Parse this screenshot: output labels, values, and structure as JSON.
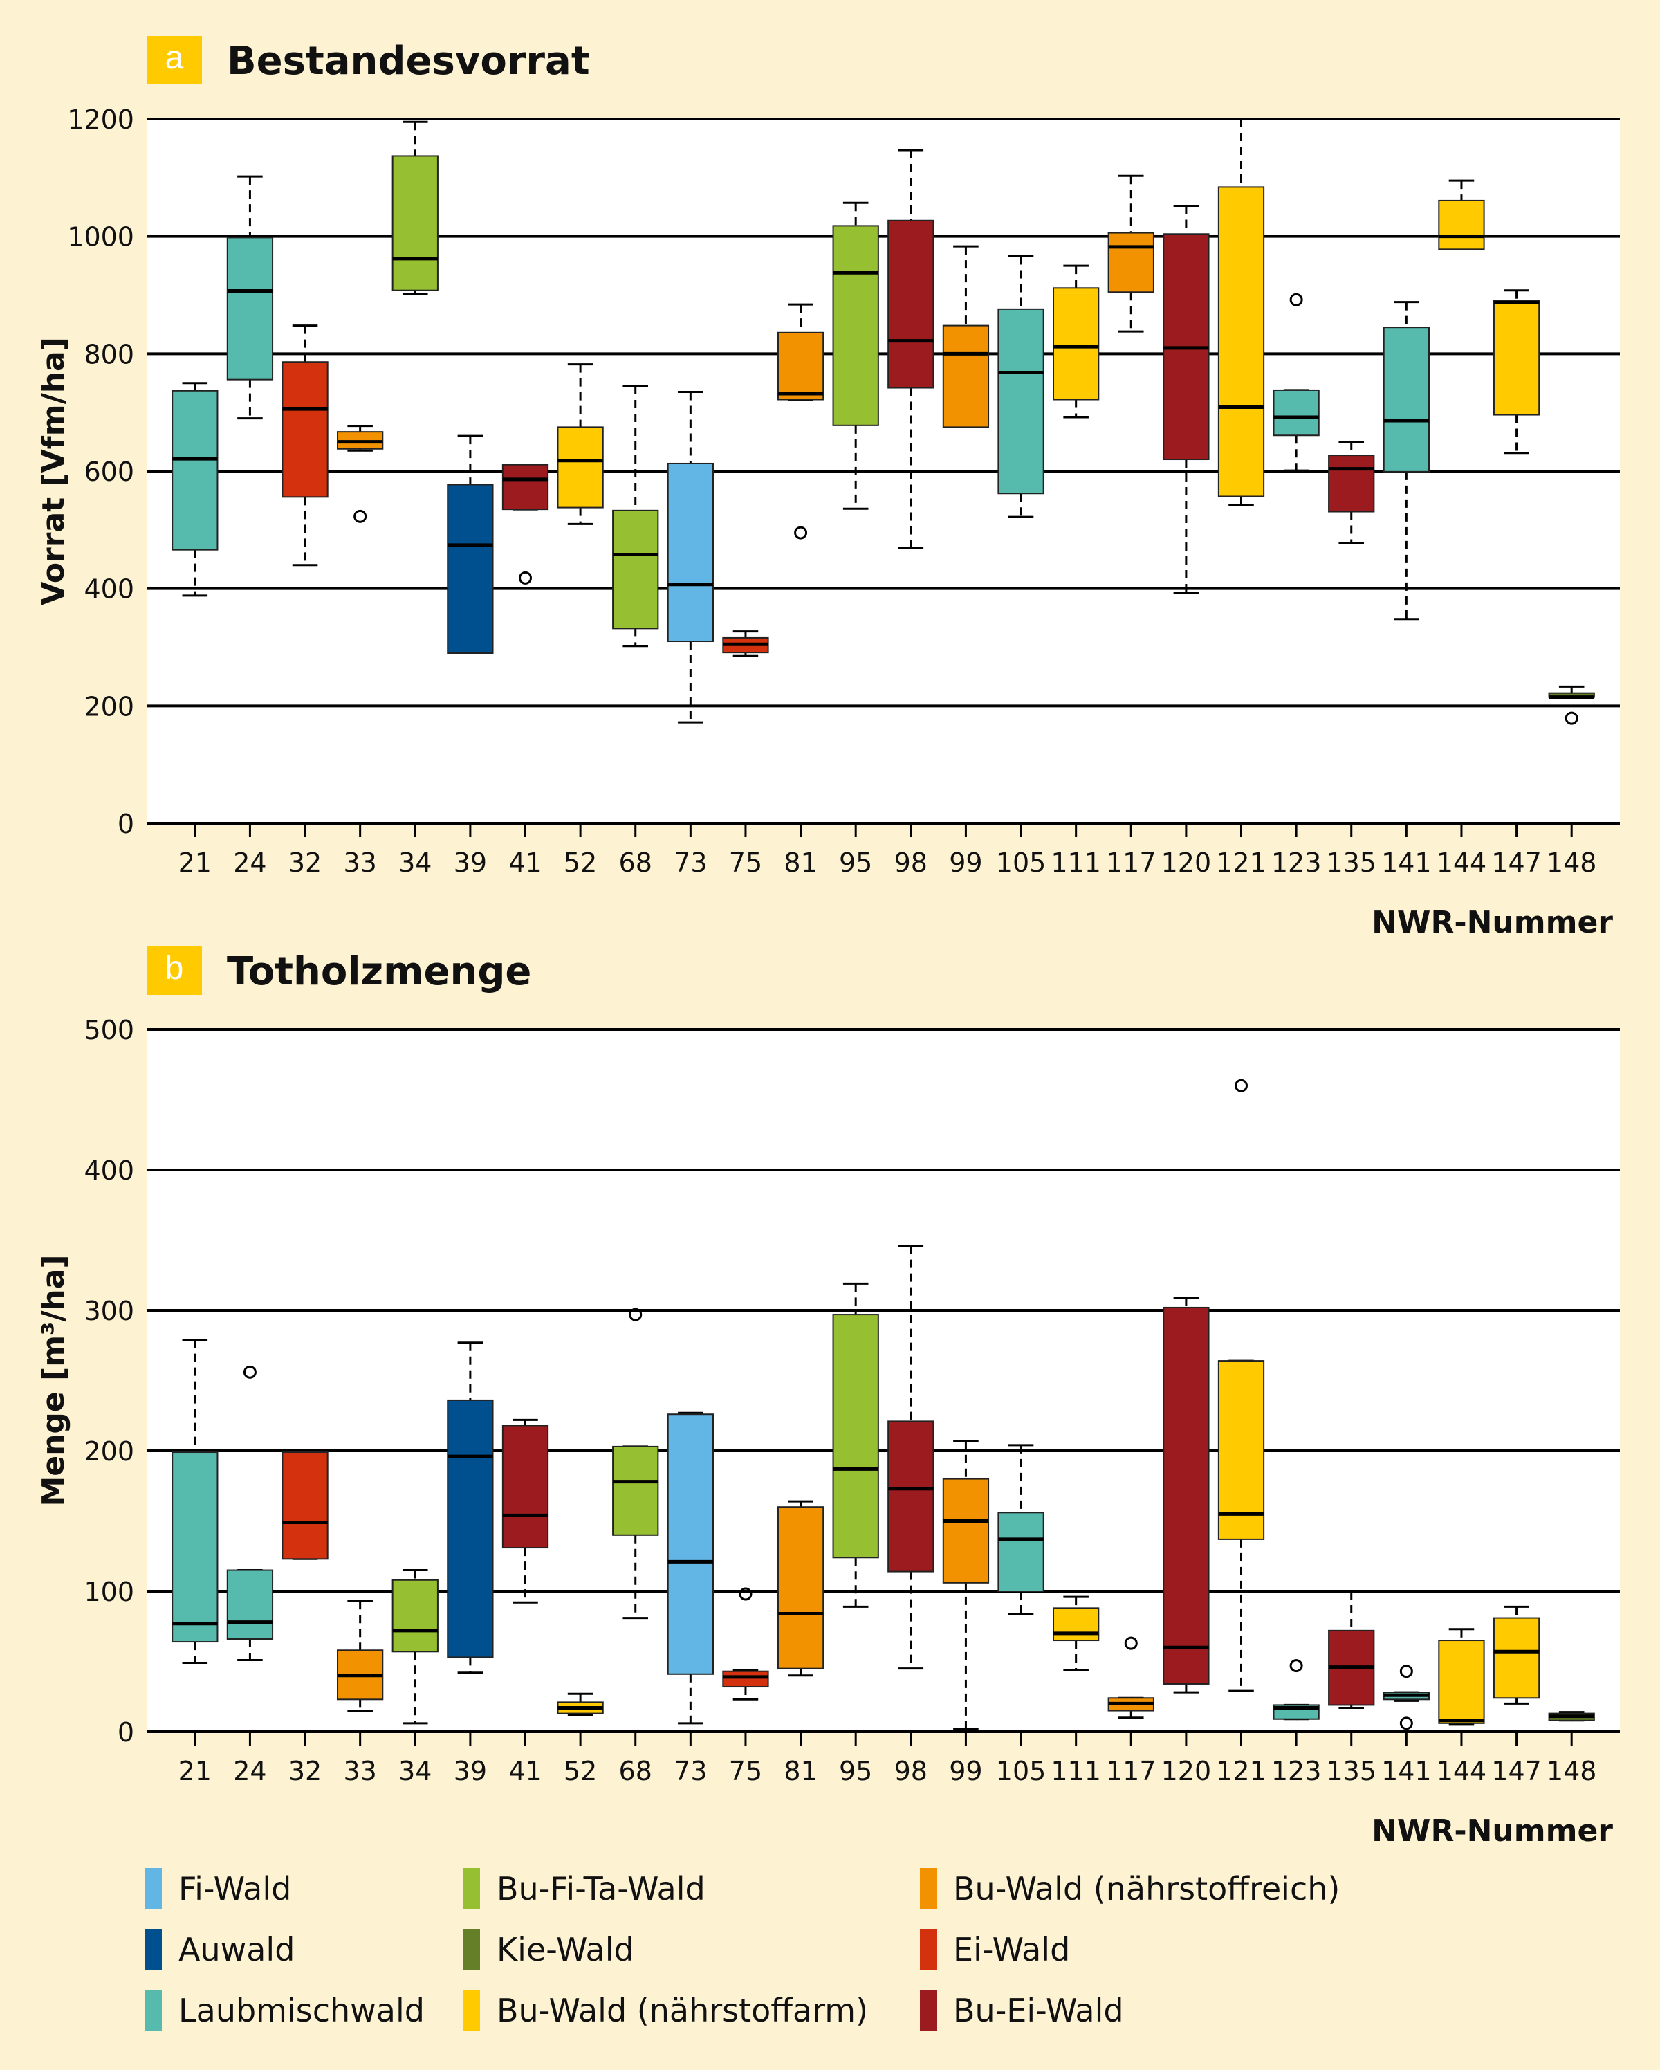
{
  "categories": {
    "fi": {
      "label": "Fi-Wald",
      "color": "#62b6e6"
    },
    "au": {
      "label": "Auwald",
      "color": "#00508f"
    },
    "laub": {
      "label": "Laubmischwald",
      "color": "#56baad"
    },
    "bufita": {
      "label": "Bu-Fi-Ta-Wald",
      "color": "#96c031"
    },
    "kie": {
      "label": "Kie-Wald",
      "color": "#647f27"
    },
    "buarm": {
      "label": "Bu-Wald (nährstoffarm)",
      "color": "#ffcb00"
    },
    "bureich": {
      "label": "Bu-Wald (nährstoffreich)",
      "color": "#f39200"
    },
    "ei": {
      "label": "Ei-Wald",
      "color": "#d4320f"
    },
    "buei": {
      "label": "Bu-Ei-Wald",
      "color": "#9b1b1e"
    }
  },
  "legend_order": [
    "fi",
    "bufita",
    "bureich",
    "au",
    "kie",
    "ei",
    "laub",
    "buarm",
    "buei"
  ],
  "chart_data": [
    {
      "type": "boxplot",
      "badge": "a",
      "title": "Bestandesvorrat",
      "ylabel": "Vorrat [Vfm/ha]",
      "xlabel": "NWR-Nummer",
      "ylim": [
        0,
        1200
      ],
      "yticks": [
        0,
        200,
        400,
        600,
        800,
        1000,
        1200
      ],
      "grid": true,
      "categories": [
        "21",
        "24",
        "32",
        "33",
        "34",
        "39",
        "41",
        "52",
        "68",
        "73",
        "75",
        "81",
        "95",
        "98",
        "99",
        "105",
        "111",
        "117",
        "120",
        "121",
        "123",
        "135",
        "141",
        "144",
        "147",
        "148"
      ],
      "forest_type": [
        "laub",
        "laub",
        "ei",
        "bureich",
        "bufita",
        "au",
        "buei",
        "buarm",
        "bufita",
        "fi",
        "ei",
        "bureich",
        "bufita",
        "buei",
        "bureich",
        "laub",
        "buarm",
        "bureich",
        "buei",
        "buarm",
        "laub",
        "buei",
        "laub",
        "buarm",
        "buarm",
        "kie"
      ],
      "boxes": [
        {
          "min": 388,
          "q1": 466,
          "median": 621,
          "q3": 737,
          "max": 750,
          "outliers": []
        },
        {
          "min": 690,
          "q1": 756,
          "median": 907,
          "q3": 998,
          "max": 1102,
          "outliers": []
        },
        {
          "min": 440,
          "q1": 556,
          "median": 706,
          "q3": 786,
          "max": 848,
          "outliers": []
        },
        {
          "min": 635,
          "q1": 638,
          "median": 650,
          "q3": 667,
          "max": 677,
          "outliers": [
            523
          ]
        },
        {
          "min": 902,
          "q1": 908,
          "median": 962,
          "q3": 1137,
          "max": 1195,
          "outliers": []
        },
        {
          "min": 290,
          "q1": 290,
          "median": 474,
          "q3": 577,
          "max": 660,
          "outliers": []
        },
        {
          "min": 535,
          "q1": 535,
          "median": 586,
          "q3": 611,
          "max": 611,
          "outliers": [
            418
          ]
        },
        {
          "min": 510,
          "q1": 538,
          "median": 618,
          "q3": 675,
          "max": 782,
          "outliers": []
        },
        {
          "min": 302,
          "q1": 332,
          "median": 458,
          "q3": 533,
          "max": 745,
          "outliers": []
        },
        {
          "min": 172,
          "q1": 310,
          "median": 407,
          "q3": 613,
          "max": 735,
          "outliers": []
        },
        {
          "min": 285,
          "q1": 291,
          "median": 305,
          "q3": 316,
          "max": 327,
          "outliers": []
        },
        {
          "min": 722,
          "q1": 722,
          "median": 732,
          "q3": 836,
          "max": 884,
          "outliers": [
            495
          ]
        },
        {
          "min": 536,
          "q1": 678,
          "median": 938,
          "q3": 1018,
          "max": 1057,
          "outliers": []
        },
        {
          "min": 469,
          "q1": 742,
          "median": 822,
          "q3": 1027,
          "max": 1147,
          "outliers": []
        },
        {
          "min": 675,
          "q1": 675,
          "median": 800,
          "q3": 848,
          "max": 983,
          "outliers": []
        },
        {
          "min": 522,
          "q1": 562,
          "median": 768,
          "q3": 876,
          "max": 966,
          "outliers": []
        },
        {
          "min": 692,
          "q1": 722,
          "median": 812,
          "q3": 912,
          "max": 950,
          "outliers": []
        },
        {
          "min": 838,
          "q1": 905,
          "median": 982,
          "q3": 1006,
          "max": 1103,
          "outliers": []
        },
        {
          "min": 392,
          "q1": 620,
          "median": 810,
          "q3": 1004,
          "max": 1052,
          "outliers": []
        },
        {
          "min": 542,
          "q1": 557,
          "median": 709,
          "q3": 1084,
          "max": 1200,
          "outliers": []
        },
        {
          "min": 601,
          "q1": 661,
          "median": 692,
          "q3": 738,
          "max": 738,
          "outliers": [
            892
          ]
        },
        {
          "min": 477,
          "q1": 531,
          "median": 604,
          "q3": 627,
          "max": 650,
          "outliers": []
        },
        {
          "min": 348,
          "q1": 599,
          "median": 686,
          "q3": 845,
          "max": 888,
          "outliers": []
        },
        {
          "min": 978,
          "q1": 978,
          "median": 1000,
          "q3": 1061,
          "max": 1095,
          "outliers": []
        },
        {
          "min": 631,
          "q1": 696,
          "median": 887,
          "q3": 891,
          "max": 908,
          "outliers": []
        },
        {
          "min": 214,
          "q1": 215,
          "median": 215,
          "q3": 222,
          "max": 233,
          "outliers": [
            179
          ]
        }
      ]
    },
    {
      "type": "boxplot",
      "badge": "b",
      "title": "Totholzmenge",
      "ylabel": "Menge [m³/ha]",
      "xlabel": "NWR-Nummer",
      "ylim": [
        0,
        500
      ],
      "yticks": [
        0,
        100,
        200,
        300,
        400,
        500
      ],
      "grid": true,
      "categories": [
        "21",
        "24",
        "32",
        "33",
        "34",
        "39",
        "41",
        "52",
        "68",
        "73",
        "75",
        "81",
        "95",
        "98",
        "99",
        "105",
        "111",
        "117",
        "120",
        "121",
        "123",
        "135",
        "141",
        "144",
        "147",
        "148"
      ],
      "forest_type": [
        "laub",
        "laub",
        "ei",
        "bureich",
        "bufita",
        "au",
        "buei",
        "buarm",
        "bufita",
        "fi",
        "ei",
        "bureich",
        "bufita",
        "buei",
        "bureich",
        "laub",
        "buarm",
        "bureich",
        "buei",
        "buarm",
        "laub",
        "buei",
        "laub",
        "buarm",
        "buarm",
        "kie"
      ],
      "boxes": [
        {
          "min": 49,
          "q1": 64,
          "median": 77,
          "q3": 199,
          "max": 279,
          "outliers": []
        },
        {
          "min": 51,
          "q1": 66,
          "median": 78,
          "q3": 115,
          "max": 115,
          "outliers": [
            256
          ]
        },
        {
          "min": 123,
          "q1": 123,
          "median": 149,
          "q3": 199,
          "max": 199,
          "outliers": []
        },
        {
          "min": 15,
          "q1": 23,
          "median": 40,
          "q3": 58,
          "max": 93,
          "outliers": []
        },
        {
          "min": 6,
          "q1": 57,
          "median": 72,
          "q3": 108,
          "max": 115,
          "outliers": []
        },
        {
          "min": 42,
          "q1": 53,
          "median": 196,
          "q3": 236,
          "max": 277,
          "outliers": []
        },
        {
          "min": 92,
          "q1": 131,
          "median": 154,
          "q3": 218,
          "max": 222,
          "outliers": []
        },
        {
          "min": 12,
          "q1": 13,
          "median": 17,
          "q3": 21,
          "max": 27,
          "outliers": []
        },
        {
          "min": 81,
          "q1": 140,
          "median": 178,
          "q3": 203,
          "max": 203,
          "outliers": [
            297
          ]
        },
        {
          "min": 6,
          "q1": 41,
          "median": 121,
          "q3": 226,
          "max": 227,
          "outliers": []
        },
        {
          "min": 23,
          "q1": 32,
          "median": 39,
          "q3": 43,
          "max": 44,
          "outliers": [
            98
          ]
        },
        {
          "min": 40,
          "q1": 45,
          "median": 84,
          "q3": 160,
          "max": 164,
          "outliers": []
        },
        {
          "min": 89,
          "q1": 124,
          "median": 187,
          "q3": 297,
          "max": 319,
          "outliers": []
        },
        {
          "min": 45,
          "q1": 114,
          "median": 173,
          "q3": 221,
          "max": 346,
          "outliers": []
        },
        {
          "min": 2,
          "q1": 106,
          "median": 150,
          "q3": 180,
          "max": 207,
          "outliers": []
        },
        {
          "min": 84,
          "q1": 100,
          "median": 137,
          "q3": 156,
          "max": 204,
          "outliers": []
        },
        {
          "min": 44,
          "q1": 65,
          "median": 70,
          "q3": 88,
          "max": 96,
          "outliers": []
        },
        {
          "min": 10,
          "q1": 15,
          "median": 20,
          "q3": 24,
          "max": 24,
          "outliers": [
            63
          ]
        },
        {
          "min": 28,
          "q1": 34,
          "median": 60,
          "q3": 302,
          "max": 309,
          "outliers": []
        },
        {
          "min": 29,
          "q1": 137,
          "median": 155,
          "q3": 264,
          "max": 264,
          "outliers": [
            460
          ]
        },
        {
          "min": 9,
          "q1": 9,
          "median": 17,
          "q3": 19,
          "max": 19,
          "outliers": [
            47
          ]
        },
        {
          "min": 17,
          "q1": 19,
          "median": 46,
          "q3": 72,
          "max": 100,
          "outliers": []
        },
        {
          "min": 22,
          "q1": 23,
          "median": 26,
          "q3": 28,
          "max": 28,
          "outliers": [
            43,
            6
          ]
        },
        {
          "min": 5,
          "q1": 6,
          "median": 8,
          "q3": 65,
          "max": 73,
          "outliers": []
        },
        {
          "min": 20,
          "q1": 24,
          "median": 57,
          "q3": 81,
          "max": 89,
          "outliers": []
        },
        {
          "min": 8,
          "q1": 8,
          "median": 11,
          "q3": 13,
          "max": 14,
          "outliers": []
        }
      ]
    }
  ]
}
